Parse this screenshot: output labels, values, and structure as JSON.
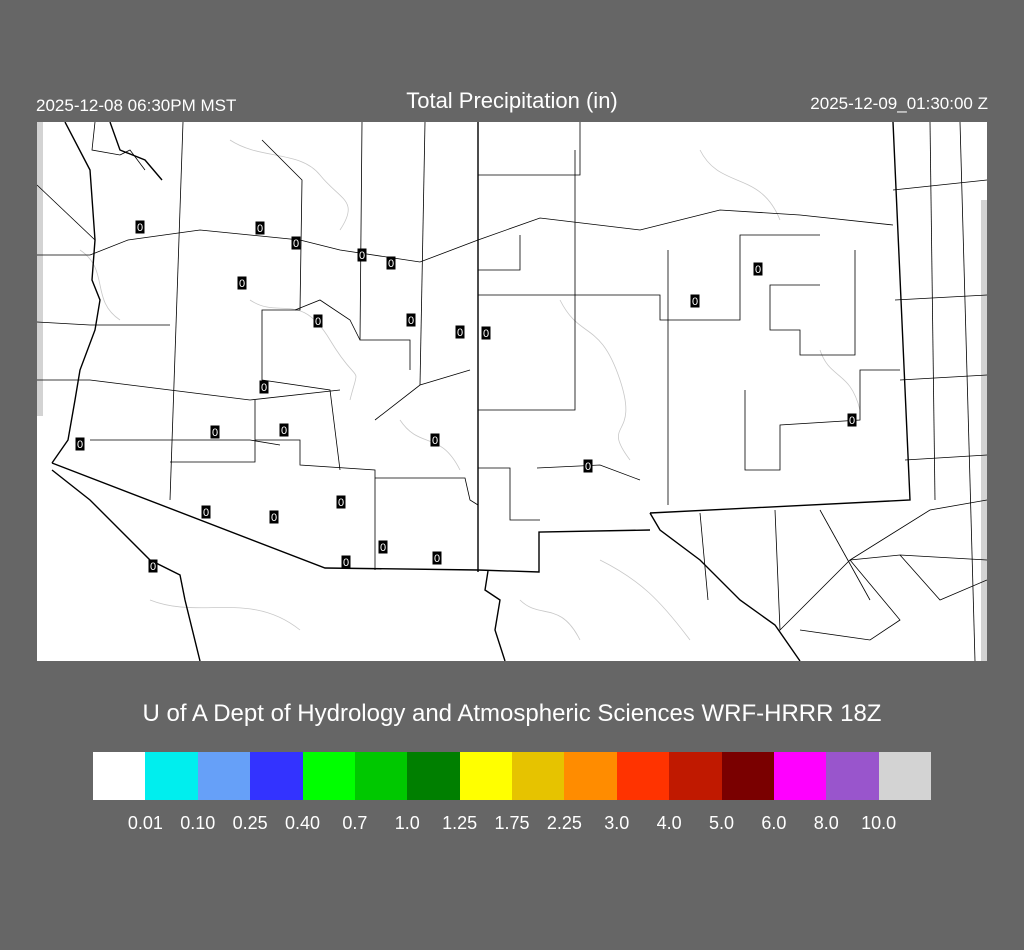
{
  "header": {
    "local_time": "2025-12-08 06:30PM MST",
    "title": "Total Precipitation (in)",
    "valid_time": "2025-12-09_01:30:00 Z"
  },
  "map": {
    "region": "Arizona / New Mexico",
    "station_values": [
      "0",
      "0",
      "0",
      "0",
      "0",
      "0",
      "0",
      "0",
      "0",
      "0",
      "0",
      "0",
      "0",
      "0",
      "0",
      "0",
      "0",
      "0",
      "0",
      "0",
      "0",
      "0",
      "0",
      "0",
      "0",
      "0"
    ],
    "colors": {
      "background": "#666666",
      "land": "#ffffff",
      "borders": "#000000",
      "contours": "#c8c8c8"
    }
  },
  "footer": {
    "credit": "U of A Dept of Hydrology and Atmospheric Sciences WRF-HRRR 18Z"
  },
  "legend": {
    "colors": [
      "#ffffff",
      "#00eeee",
      "#66a0f8",
      "#3333ff",
      "#00ff00",
      "#00c800",
      "#007f00",
      "#ffff00",
      "#e6c300",
      "#ff8c00",
      "#ff3300",
      "#c01900",
      "#7a0000",
      "#ff00ff",
      "#9955cc",
      "#d3d3d3"
    ],
    "labels": [
      "0.01",
      "0.10",
      "0.25",
      "0.40",
      "0.7",
      "1.0",
      "1.25",
      "1.75",
      "2.25",
      "3.0",
      "4.0",
      "5.0",
      "6.0",
      "8.0",
      "10.0"
    ]
  }
}
